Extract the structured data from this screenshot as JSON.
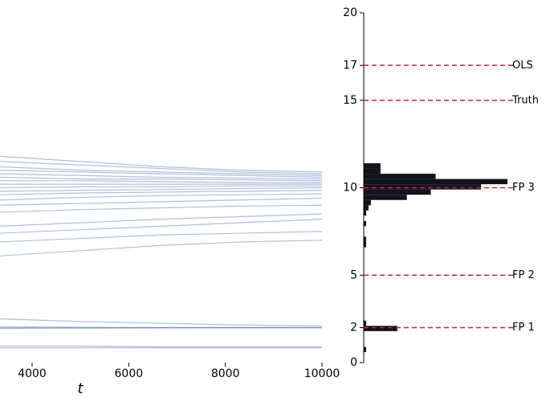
{
  "chart_data": [
    {
      "type": "line",
      "xlabel": "t",
      "x": [
        3335,
        5000,
        6667,
        8333,
        10000
      ],
      "xlim": [
        3335,
        10000
      ],
      "xticks": [
        4000,
        6000,
        8000,
        10000
      ],
      "ylim": [
        0,
        20
      ],
      "color": "#4c72b0",
      "series": [
        {
          "values": [
            11.8,
            11.5,
            11.2,
            11.0,
            10.9
          ]
        },
        {
          "values": [
            11.5,
            11.3,
            11.1,
            10.9,
            10.8
          ]
        },
        {
          "values": [
            11.2,
            11.0,
            10.9,
            10.8,
            10.7
          ]
        },
        {
          "values": [
            11.0,
            10.9,
            10.8,
            10.7,
            10.6
          ]
        },
        {
          "values": [
            10.8,
            10.7,
            10.6,
            10.55,
            10.5
          ]
        },
        {
          "values": [
            10.6,
            10.5,
            10.5,
            10.45,
            10.4
          ]
        },
        {
          "values": [
            10.4,
            10.4,
            10.35,
            10.3,
            10.3
          ]
        },
        {
          "values": [
            10.2,
            10.2,
            10.2,
            10.2,
            10.2
          ]
        },
        {
          "values": [
            10.0,
            10.05,
            10.05,
            10.1,
            10.1
          ]
        },
        {
          "values": [
            9.8,
            9.85,
            9.9,
            9.95,
            10.0
          ]
        },
        {
          "values": [
            9.6,
            9.7,
            9.75,
            9.8,
            9.85
          ]
        },
        {
          "values": [
            9.3,
            9.45,
            9.55,
            9.6,
            9.65
          ]
        },
        {
          "values": [
            9.0,
            9.1,
            9.2,
            9.3,
            9.4
          ]
        },
        {
          "values": [
            8.6,
            8.75,
            8.85,
            8.95,
            9.0
          ]
        },
        {
          "values": [
            7.8,
            8.0,
            8.2,
            8.35,
            8.5
          ]
        },
        {
          "values": [
            7.4,
            7.6,
            7.8,
            8.0,
            8.2
          ]
        },
        {
          "values": [
            6.9,
            7.1,
            7.3,
            7.4,
            7.5
          ]
        },
        {
          "values": [
            6.1,
            6.4,
            6.7,
            6.9,
            7.0
          ]
        },
        {
          "values": [
            2.5,
            2.35,
            2.25,
            2.15,
            2.1
          ]
        },
        {
          "values": [
            2.05,
            2.02,
            2.0,
            2.0,
            2.0
          ]
        },
        {
          "values": [
            2.0,
            2.0,
            2.0,
            2.0,
            2.0
          ]
        },
        {
          "values": [
            1.95,
            1.97,
            1.98,
            1.99,
            2.0
          ]
        },
        {
          "values": [
            0.95,
            0.95,
            0.9,
            0.9,
            0.9
          ]
        },
        {
          "values": [
            0.85,
            0.85,
            0.85,
            0.85,
            0.85
          ]
        }
      ]
    },
    {
      "type": "histogram",
      "orientation": "horizontal",
      "color": "#12121f",
      "bins": [
        0.6,
        0.9,
        1.2,
        1.5,
        1.8,
        2.1,
        2.4,
        2.7,
        3.0,
        3.3,
        3.6,
        3.9,
        4.2,
        4.5,
        4.8,
        5.1,
        5.4,
        5.7,
        6.0,
        6.3,
        6.6,
        6.9,
        7.2,
        7.5,
        7.8,
        8.1,
        8.4,
        8.7,
        9.0,
        9.3,
        9.6,
        9.9,
        10.2,
        10.5,
        10.8,
        11.1,
        11.4
      ],
      "counts": [
        1,
        0,
        0,
        0,
        14,
        1,
        0,
        0,
        0,
        0,
        0,
        0,
        0,
        0,
        0,
        0,
        0,
        0,
        0,
        0,
        1,
        1,
        0,
        0,
        1,
        0,
        1,
        2,
        3,
        18,
        28,
        49,
        60,
        30,
        7,
        7
      ],
      "xlim": [
        0,
        60
      ],
      "ylim": [
        0,
        20
      ],
      "yticks": [
        0,
        2,
        5,
        10,
        15,
        17,
        20
      ],
      "ref_color": "#c0282d",
      "ref_lines": [
        {
          "value": 17,
          "label": "OLS"
        },
        {
          "value": 15,
          "label": "Truth"
        },
        {
          "value": 10,
          "label": "FP 3"
        },
        {
          "value": 5,
          "label": "FP 2"
        },
        {
          "value": 2,
          "label": "FP 1"
        }
      ]
    }
  ]
}
